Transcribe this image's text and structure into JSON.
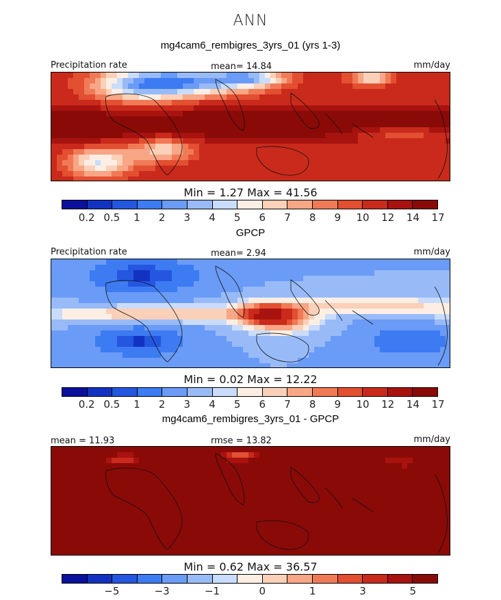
{
  "title": "ANN",
  "palette": [
    "#0b119c",
    "#1233c2",
    "#2456e0",
    "#3d7bf2",
    "#6a9bf6",
    "#98bbf8",
    "#cadcfb",
    "#fdeee4",
    "#fbd0b8",
    "#f7a686",
    "#f17a56",
    "#e24f31",
    "#c92a1b",
    "#a8130f",
    "#8a0a07"
  ],
  "panels": [
    {
      "id": "model",
      "subtitle": "mg4cam6_rembigres_3yrs_01 (yrs 1-3)",
      "left_label": "Precipitation rate",
      "center_label": "mean=  14.84",
      "right_label": "mm/day",
      "stats": "Min =    1.27  Max =   41.56",
      "ticks": [
        "0.2",
        "0.5",
        "1",
        "2",
        "3",
        "4",
        "5",
        "6",
        "7",
        "8",
        "9",
        "10",
        "12",
        "14",
        "17"
      ],
      "field": "model"
    },
    {
      "id": "obs",
      "subtitle": "GPCP",
      "left_label": "Precipitation rate",
      "center_label": "mean=   2.94",
      "right_label": "mm/day",
      "stats": "Min =    0.02  Max =   12.22",
      "ticks": [
        "0.2",
        "0.5",
        "1",
        "2",
        "3",
        "4",
        "5",
        "6",
        "7",
        "8",
        "9",
        "10",
        "12",
        "14",
        "17"
      ],
      "field": "obs"
    },
    {
      "id": "diff",
      "subtitle": "mg4cam6_rembigres_3yrs_01 - GPCP",
      "left_label": "mean =   11.93",
      "center_label": "rmse =   13.82",
      "right_label": "mm/day",
      "stats": "Min =    0.62  Max =   36.57",
      "ticks": [
        "−5",
        "−3",
        "−1",
        "0",
        "1",
        "3",
        "5"
      ],
      "field": "diff"
    }
  ]
}
